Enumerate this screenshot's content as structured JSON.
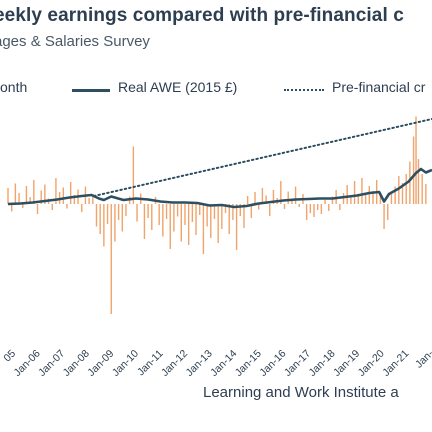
{
  "title": "eekly earnings compared with pre-financial c",
  "subtitle": "ages & Salaries Survey",
  "legend": [
    {
      "label": "onth",
      "color": "#f0a36a"
    },
    {
      "label": "Real AWE (2015 £)",
      "color": "#2d4f61"
    },
    {
      "label": "Pre-financial cr",
      "color": "#2d4f61"
    }
  ],
  "source": "Learning and Work Institute a",
  "colors": {
    "bar": "#f0a36a",
    "awe": "#2d4f61",
    "trend": "#2d4f61",
    "text": "#2d3e50"
  },
  "chart_data": {
    "type": "line",
    "grid": false,
    "x_tick_labels": [
      "05",
      "Jan-06",
      "Jan-07",
      "Jan-08",
      "Jan-09",
      "Jan-10",
      "Jan-11",
      "Jan-12",
      "Jan-13",
      "Jan-14",
      "Jan-15",
      "Jan-16",
      "Jan-17",
      "Jan-18",
      "Jan-19",
      "Jan-20",
      "Jan-21",
      "Jan-"
    ],
    "xlim": [
      2005.0,
      2022.25
    ],
    "series": [
      {
        "name": "Real AWE (2015 £)",
        "style": "solid",
        "points": [
          [
            2005.0,
            0.0
          ],
          [
            2005.5,
            0.1
          ],
          [
            2006.0,
            0.3
          ],
          [
            2006.5,
            0.6
          ],
          [
            2007.0,
            0.9
          ],
          [
            2007.5,
            1.3
          ],
          [
            2008.0,
            1.6
          ],
          [
            2008.4,
            1.8
          ],
          [
            2008.7,
            1.1
          ],
          [
            2008.9,
            0.8
          ],
          [
            2009.2,
            1.5
          ],
          [
            2009.7,
            0.8
          ],
          [
            2010.2,
            1.1
          ],
          [
            2010.7,
            0.9
          ],
          [
            2011.2,
            0.5
          ],
          [
            2011.7,
            0.3
          ],
          [
            2012.2,
            0.3
          ],
          [
            2012.7,
            0.2
          ],
          [
            2013.2,
            -0.3
          ],
          [
            2013.7,
            -0.2
          ],
          [
            2014.2,
            -0.6
          ],
          [
            2014.7,
            -0.4
          ],
          [
            2015.2,
            0.1
          ],
          [
            2015.7,
            0.4
          ],
          [
            2016.2,
            0.7
          ],
          [
            2016.7,
            0.9
          ],
          [
            2017.2,
            1.0
          ],
          [
            2017.7,
            1.1
          ],
          [
            2018.2,
            1.1
          ],
          [
            2018.7,
            1.4
          ],
          [
            2019.2,
            1.7
          ],
          [
            2019.7,
            2.2
          ],
          [
            2020.1,
            2.4
          ],
          [
            2020.3,
            0.5
          ],
          [
            2020.5,
            2.0
          ],
          [
            2020.9,
            3.1
          ],
          [
            2021.3,
            4.5
          ],
          [
            2021.6,
            6.2
          ],
          [
            2021.8,
            7.0
          ],
          [
            2022.0,
            6.3
          ],
          [
            2022.25,
            6.8
          ]
        ]
      },
      {
        "name": "Pre-financial cr",
        "style": "dotted",
        "points": [
          [
            2008.5,
            1.6
          ],
          [
            2022.25,
            17.0
          ]
        ]
      }
    ],
    "bars_name": "onth",
    "bars": [
      {
        "x": 2005.0,
        "value": 3.2
      },
      {
        "x": 2005.15,
        "value": -1.5
      },
      {
        "x": 2005.3,
        "value": 4.1
      },
      {
        "x": 2005.45,
        "value": 2.2
      },
      {
        "x": 2005.6,
        "value": -0.8
      },
      {
        "x": 2005.75,
        "value": 3.6
      },
      {
        "x": 2005.9,
        "value": 1.4
      },
      {
        "x": 2006.05,
        "value": 4.8
      },
      {
        "x": 2006.2,
        "value": -2.0
      },
      {
        "x": 2006.35,
        "value": 2.7
      },
      {
        "x": 2006.5,
        "value": 3.9
      },
      {
        "x": 2006.65,
        "value": 1.1
      },
      {
        "x": 2006.8,
        "value": -1.2
      },
      {
        "x": 2006.95,
        "value": 5.2
      },
      {
        "x": 2007.1,
        "value": 2.4
      },
      {
        "x": 2007.25,
        "value": 3.3
      },
      {
        "x": 2007.4,
        "value": -0.9
      },
      {
        "x": 2007.55,
        "value": 4.4
      },
      {
        "x": 2007.7,
        "value": 1.8
      },
      {
        "x": 2007.85,
        "value": 2.9
      },
      {
        "x": 2008.0,
        "value": -1.6
      },
      {
        "x": 2008.15,
        "value": 3.5
      },
      {
        "x": 2008.3,
        "value": 1.2
      },
      {
        "x": 2008.45,
        "value": 2.0
      },
      {
        "x": 2008.6,
        "value": -4.5
      },
      {
        "x": 2008.75,
        "value": -6.0
      },
      {
        "x": 2008.9,
        "value": -8.5
      },
      {
        "x": 2009.05,
        "value": -4.0
      },
      {
        "x": 2009.2,
        "value": -22.0
      },
      {
        "x": 2009.35,
        "value": -7.5
      },
      {
        "x": 2009.5,
        "value": -3.2
      },
      {
        "x": 2009.65,
        "value": -5.5
      },
      {
        "x": 2009.8,
        "value": -2.4
      },
      {
        "x": 2009.95,
        "value": 1.5
      },
      {
        "x": 2010.1,
        "value": 11.5
      },
      {
        "x": 2010.25,
        "value": -3.5
      },
      {
        "x": 2010.4,
        "value": 2.1
      },
      {
        "x": 2010.55,
        "value": -7.0
      },
      {
        "x": 2010.7,
        "value": -2.8
      },
      {
        "x": 2010.85,
        "value": -5.2
      },
      {
        "x": 2011.0,
        "value": 1.4
      },
      {
        "x": 2011.15,
        "value": -4.2
      },
      {
        "x": 2011.3,
        "value": -6.5
      },
      {
        "x": 2011.45,
        "value": -3.0
      },
      {
        "x": 2011.6,
        "value": -9.0
      },
      {
        "x": 2011.75,
        "value": -5.5
      },
      {
        "x": 2011.9,
        "value": -2.5
      },
      {
        "x": 2012.05,
        "value": -7.5
      },
      {
        "x": 2012.2,
        "value": -4.2
      },
      {
        "x": 2012.35,
        "value": -8.2
      },
      {
        "x": 2012.5,
        "value": -3.6
      },
      {
        "x": 2012.65,
        "value": -6.2
      },
      {
        "x": 2012.8,
        "value": -2.2
      },
      {
        "x": 2012.95,
        "value": -10.0
      },
      {
        "x": 2013.1,
        "value": -4.5
      },
      {
        "x": 2013.25,
        "value": -6.8
      },
      {
        "x": 2013.4,
        "value": -3.0
      },
      {
        "x": 2013.55,
        "value": -7.8
      },
      {
        "x": 2013.7,
        "value": -5.0
      },
      {
        "x": 2013.85,
        "value": -1.8
      },
      {
        "x": 2014.0,
        "value": -6.0
      },
      {
        "x": 2014.15,
        "value": -3.2
      },
      {
        "x": 2014.3,
        "value": -9.2
      },
      {
        "x": 2014.45,
        "value": -2.4
      },
      {
        "x": 2014.6,
        "value": -4.8
      },
      {
        "x": 2014.75,
        "value": 1.6
      },
      {
        "x": 2014.9,
        "value": -2.8
      },
      {
        "x": 2015.05,
        "value": 2.4
      },
      {
        "x": 2015.2,
        "value": -1.1
      },
      {
        "x": 2015.35,
        "value": 3.2
      },
      {
        "x": 2015.5,
        "value": 1.7
      },
      {
        "x": 2015.65,
        "value": -2.4
      },
      {
        "x": 2015.8,
        "value": 2.8
      },
      {
        "x": 2015.95,
        "value": 1.2
      },
      {
        "x": 2016.1,
        "value": 4.6
      },
      {
        "x": 2016.25,
        "value": -1.0
      },
      {
        "x": 2016.4,
        "value": 2.5
      },
      {
        "x": 2016.55,
        "value": 1.0
      },
      {
        "x": 2016.7,
        "value": 3.5
      },
      {
        "x": 2016.85,
        "value": -0.6
      },
      {
        "x": 2017.0,
        "value": 2.0
      },
      {
        "x": 2017.15,
        "value": -3.2
      },
      {
        "x": 2017.3,
        "value": -1.8
      },
      {
        "x": 2017.45,
        "value": -2.6
      },
      {
        "x": 2017.6,
        "value": -1.2
      },
      {
        "x": 2017.75,
        "value": -2.0
      },
      {
        "x": 2017.9,
        "value": 0.8
      },
      {
        "x": 2018.05,
        "value": -1.4
      },
      {
        "x": 2018.2,
        "value": 1.5
      },
      {
        "x": 2018.35,
        "value": 2.8
      },
      {
        "x": 2018.5,
        "value": -1.2
      },
      {
        "x": 2018.65,
        "value": 2.2
      },
      {
        "x": 2018.8,
        "value": 3.8
      },
      {
        "x": 2018.95,
        "value": 1.3
      },
      {
        "x": 2019.1,
        "value": 4.6
      },
      {
        "x": 2019.25,
        "value": 2.0
      },
      {
        "x": 2019.4,
        "value": 5.2
      },
      {
        "x": 2019.55,
        "value": 1.8
      },
      {
        "x": 2019.7,
        "value": 3.6
      },
      {
        "x": 2019.85,
        "value": 2.6
      },
      {
        "x": 2020.0,
        "value": 4.8
      },
      {
        "x": 2020.15,
        "value": 1.6
      },
      {
        "x": 2020.3,
        "value": -5.0
      },
      {
        "x": 2020.45,
        "value": -3.2
      },
      {
        "x": 2020.6,
        "value": 2.0
      },
      {
        "x": 2020.75,
        "value": 3.5
      },
      {
        "x": 2020.9,
        "value": 5.6
      },
      {
        "x": 2021.05,
        "value": 4.2
      },
      {
        "x": 2021.2,
        "value": 6.0
      },
      {
        "x": 2021.35,
        "value": 8.5
      },
      {
        "x": 2021.5,
        "value": 13.5
      },
      {
        "x": 2021.6,
        "value": 17.5
      },
      {
        "x": 2021.7,
        "value": 9.0
      },
      {
        "x": 2021.85,
        "value": 6.0
      },
      {
        "x": 2022.0,
        "value": 4.0
      }
    ]
  }
}
